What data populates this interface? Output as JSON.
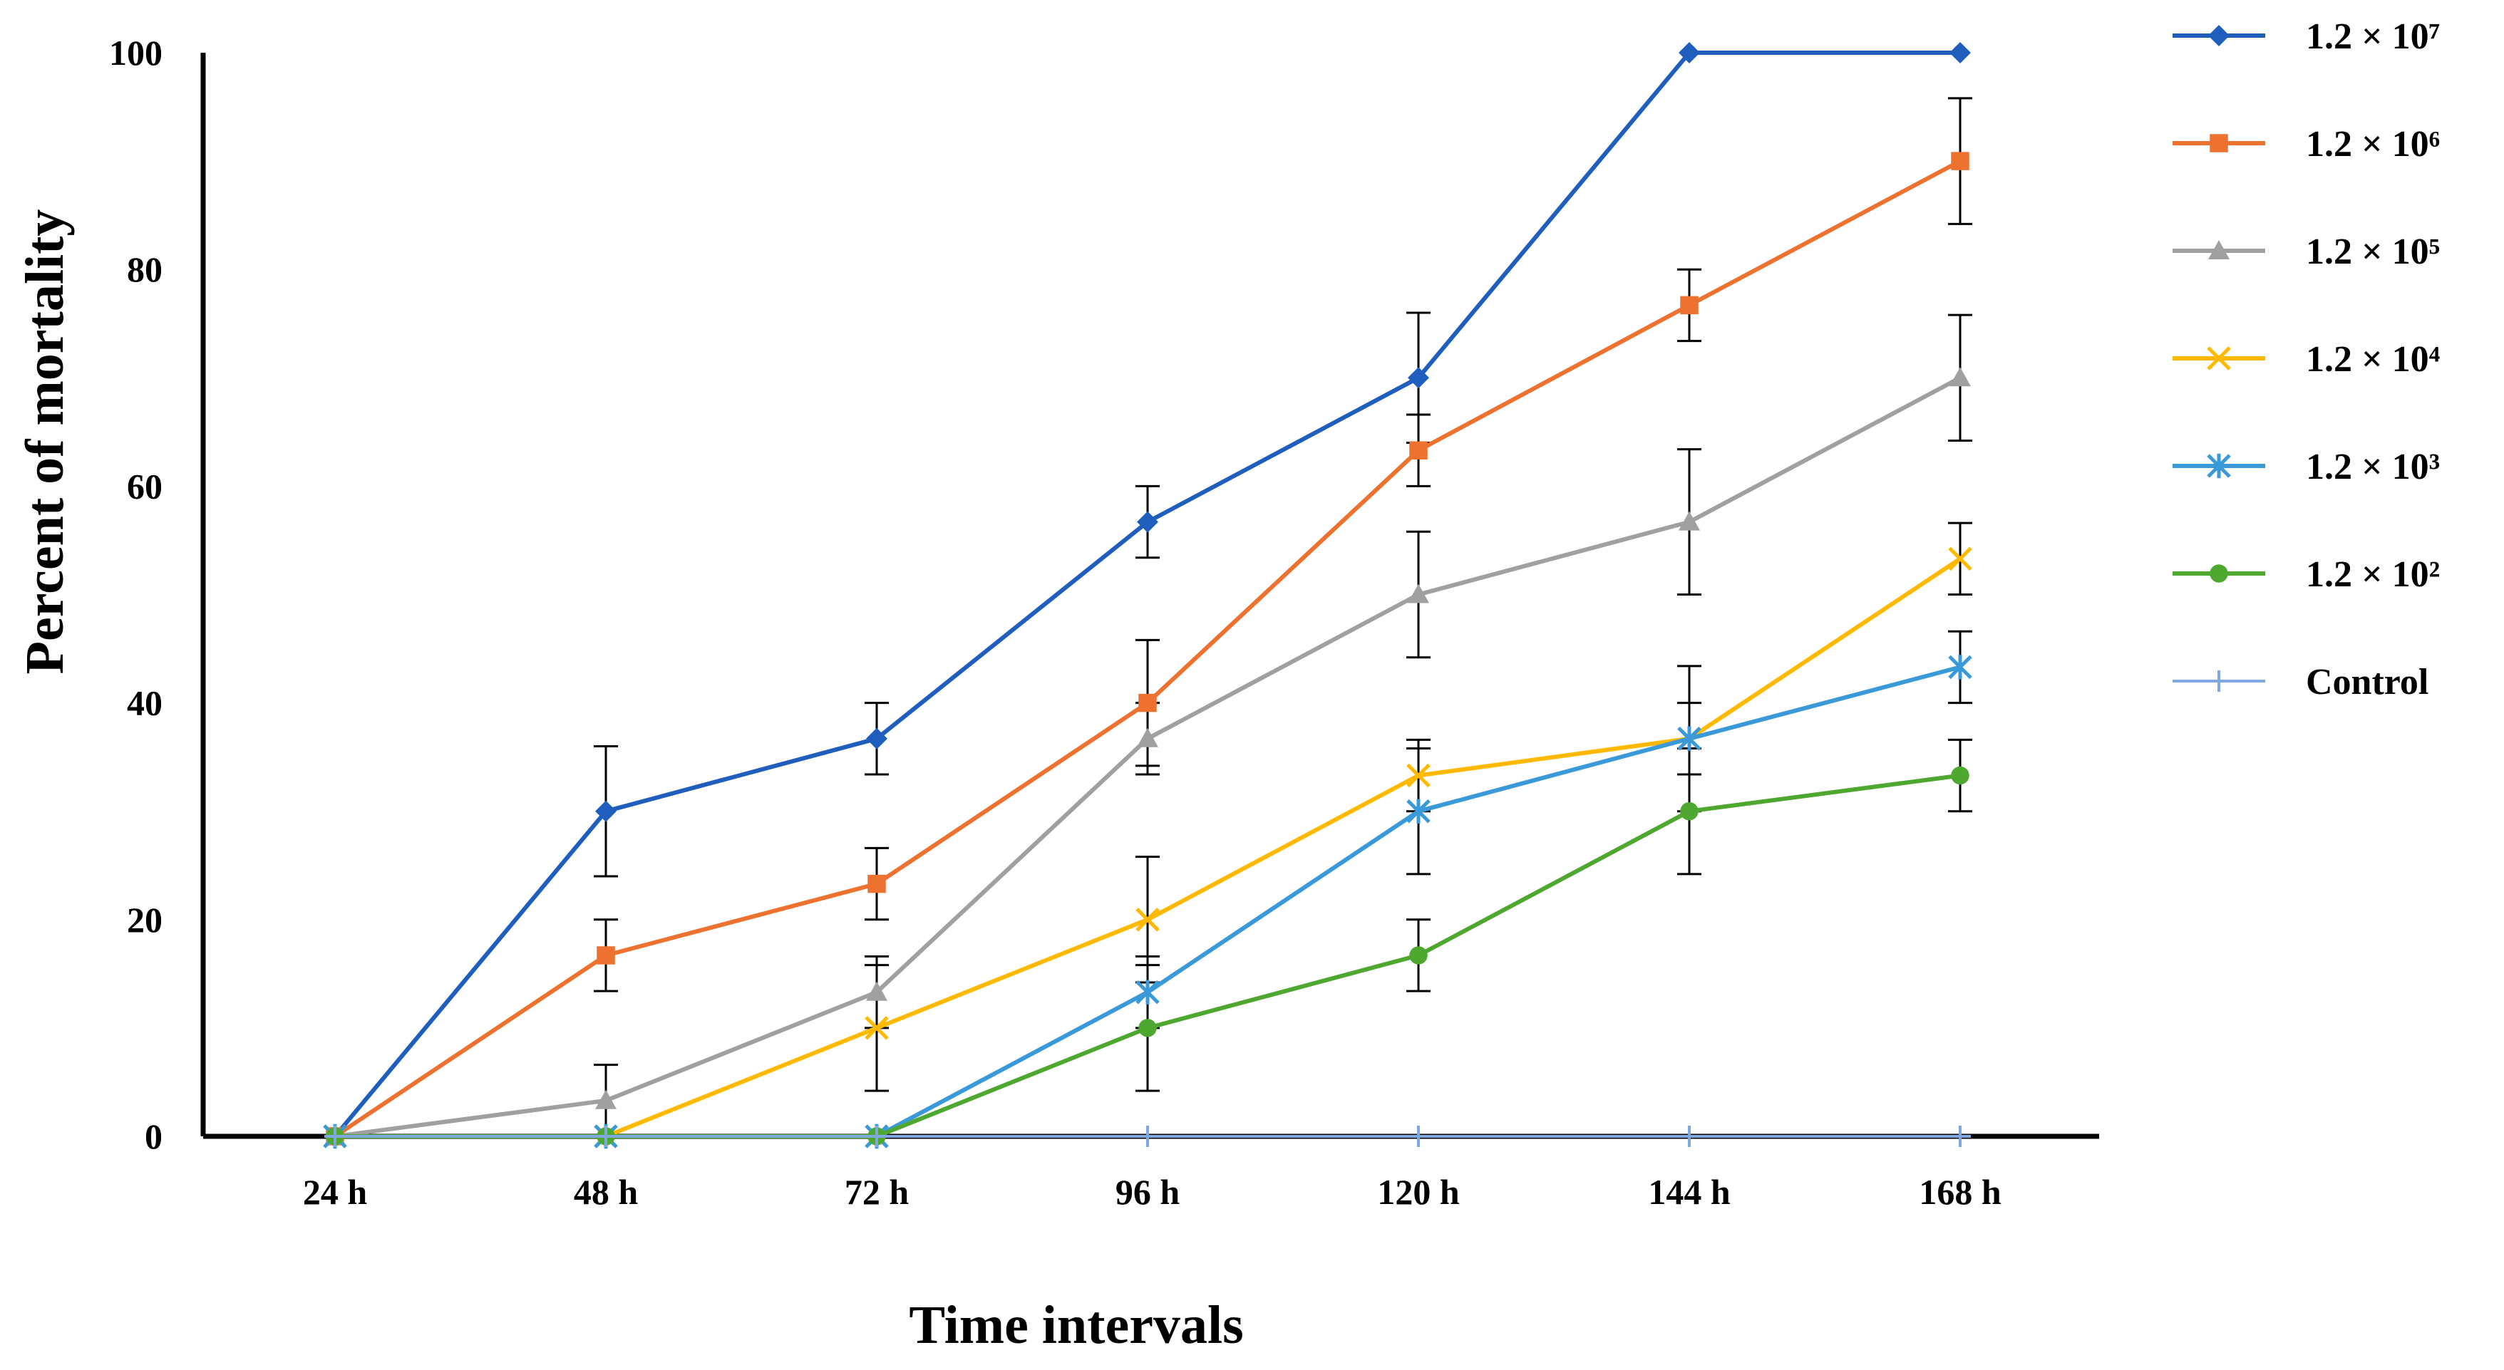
{
  "chart_data": {
    "type": "line",
    "title": "",
    "xlabel": "Time intervals",
    "ylabel": "Percent of mortality",
    "categories": [
      "24 h",
      "48 h",
      "72 h",
      "96 h",
      "120 h",
      "144 h",
      "168 h"
    ],
    "ylim": [
      0,
      100
    ],
    "yticks": [
      0,
      20,
      40,
      60,
      80,
      100
    ],
    "grid": false,
    "legend_position": "right",
    "error_bars": true,
    "series": [
      {
        "name": "1.2 × 10⁷",
        "color": "#1F5EBD",
        "marker": "diamond",
        "values": [
          0,
          30,
          36.7,
          56.7,
          70,
          100,
          100
        ],
        "errors": [
          0,
          6,
          3.3,
          3.3,
          6,
          0,
          0
        ]
      },
      {
        "name": "1.2 × 10⁶",
        "color": "#ED7230",
        "marker": "square",
        "values": [
          0,
          16.7,
          23.3,
          40,
          63.3,
          76.7,
          90
        ],
        "errors": [
          0,
          3.3,
          3.3,
          5.8,
          3.3,
          3.3,
          5.8
        ]
      },
      {
        "name": "1.2 × 10⁵",
        "color": "#A0A0A0",
        "marker": "triangle",
        "values": [
          0,
          3.3,
          13.3,
          36.7,
          50,
          56.7,
          70
        ],
        "errors": [
          0,
          3.3,
          3.3,
          3.3,
          5.8,
          6.7,
          5.8
        ]
      },
      {
        "name": "1.2 × 10⁴",
        "color": "#FFB900",
        "marker": "x",
        "values": [
          0,
          0,
          10,
          20,
          33.3,
          36.7,
          53.3
        ],
        "errors": [
          0,
          0,
          5.8,
          5.8,
          3.3,
          3.3,
          3.3
        ]
      },
      {
        "name": "1.2 × 10³",
        "color": "#3A9AD9",
        "marker": "star",
        "values": [
          0,
          0,
          0,
          13.3,
          30,
          36.7,
          43.3
        ],
        "errors": [
          0,
          0,
          0,
          3.3,
          5.8,
          6.7,
          3.3
        ]
      },
      {
        "name": "1.2 × 10²",
        "color": "#4EA72E",
        "marker": "circle",
        "values": [
          0,
          0,
          0,
          10,
          16.7,
          30,
          33.3
        ],
        "errors": [
          0,
          0,
          0,
          5.8,
          3.3,
          5.8,
          3.3
        ]
      },
      {
        "name": "Control",
        "color": "#7FA7E0",
        "marker": "plus",
        "values": [
          0,
          0,
          0,
          0,
          0,
          0,
          0
        ],
        "errors": [
          0,
          0,
          0,
          0,
          0,
          0,
          0
        ]
      }
    ]
  }
}
